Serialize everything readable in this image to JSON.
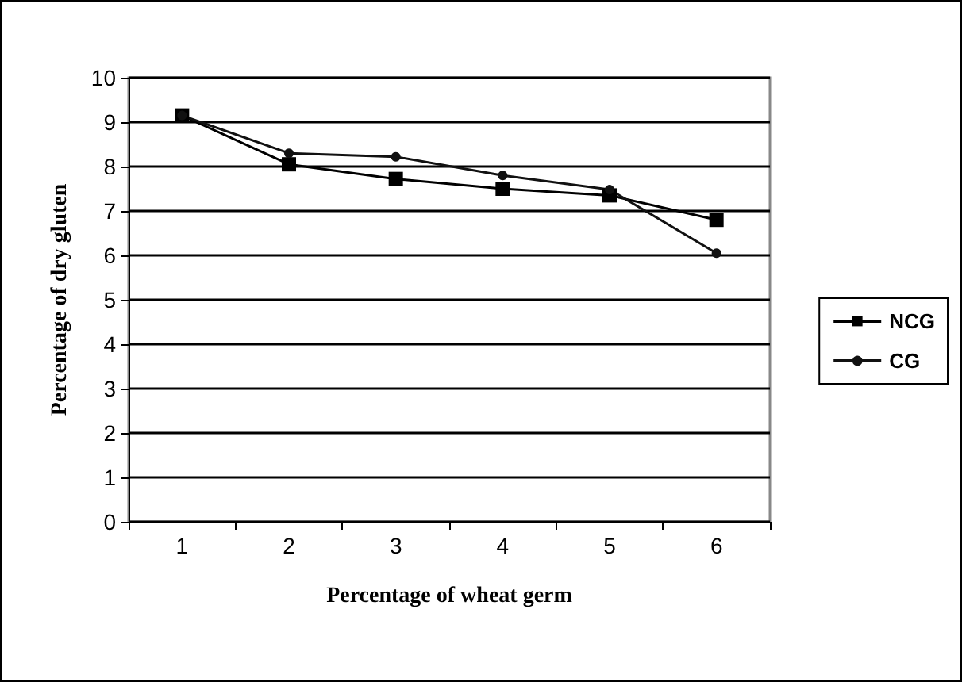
{
  "chart_data": {
    "type": "line",
    "xlabel": "Percentage of wheat germ",
    "ylabel": "Percentage of dry gluten",
    "categories": [
      "1",
      "2",
      "3",
      "4",
      "5",
      "6"
    ],
    "series": [
      {
        "name": "NCG",
        "color": "#000000",
        "marker": "square",
        "values": [
          9.15,
          8.05,
          7.72,
          7.5,
          7.35,
          6.8
        ]
      },
      {
        "name": "CG",
        "color": "#111111",
        "marker": "circle",
        "values": [
          9.15,
          8.3,
          8.22,
          7.8,
          7.48,
          6.05
        ]
      }
    ],
    "ylim": [
      0,
      10
    ],
    "yticks": [
      0,
      1,
      2,
      3,
      4,
      5,
      6,
      7,
      8,
      9,
      10
    ],
    "grid": "y",
    "legend": "right"
  }
}
